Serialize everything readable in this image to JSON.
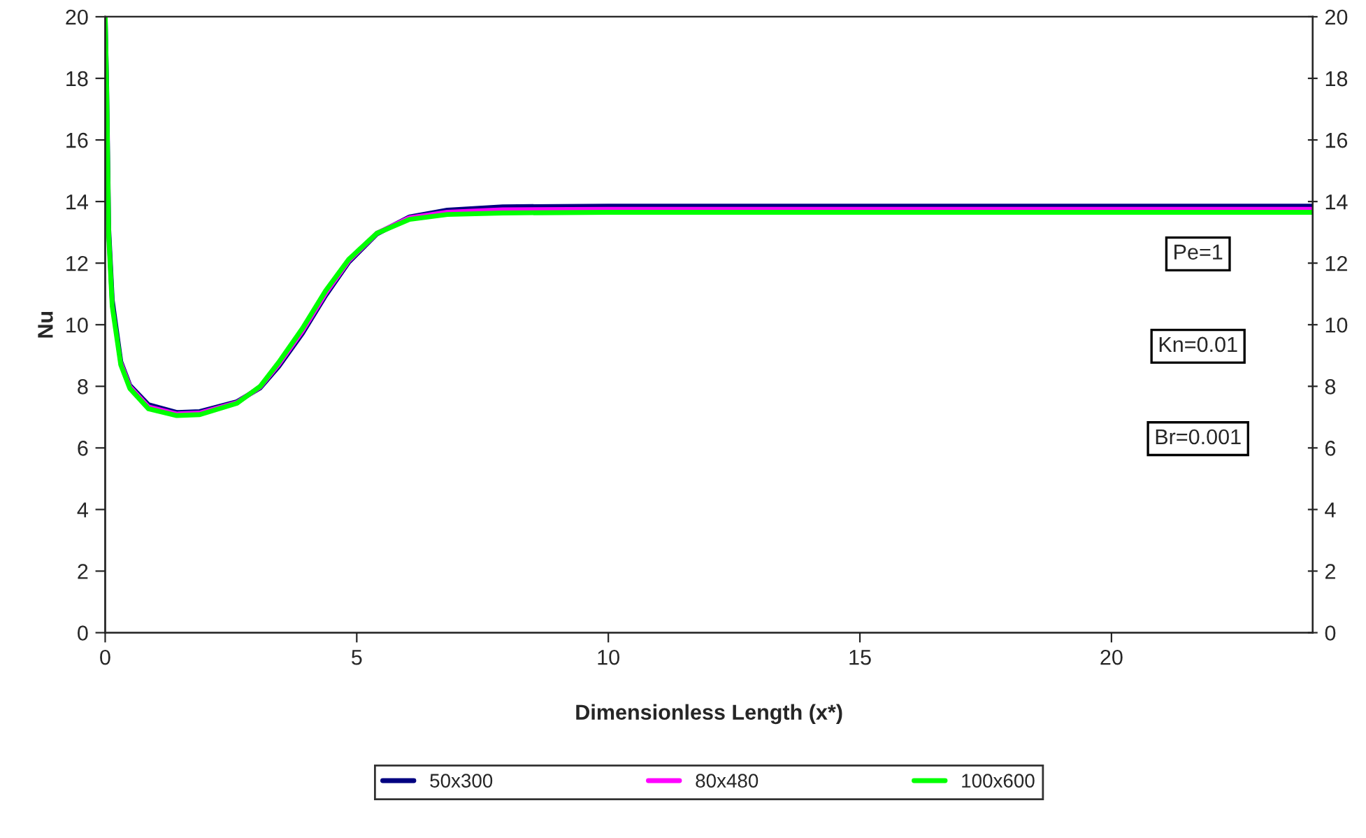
{
  "chart_data": {
    "type": "line",
    "xlabel": "Dimensionless Length (x*)",
    "ylabel": "Nu",
    "x": [
      0,
      0.03,
      0.07,
      0.14,
      0.31,
      0.49,
      0.86,
      1.42,
      1.88,
      2.62,
      3.08,
      3.45,
      3.92,
      4.38,
      4.84,
      5.4,
      6.05,
      6.8,
      7.9,
      10,
      15,
      20,
      24
    ],
    "series": [
      {
        "name": "50x300",
        "color": "#000080",
        "values": [
          20,
          17.7,
          13.1,
          10.8,
          8.8,
          8.03,
          7.4,
          7.15,
          7.18,
          7.5,
          7.95,
          8.65,
          9.72,
          10.95,
          12.03,
          12.95,
          13.5,
          13.72,
          13.83,
          13.85,
          13.85,
          13.85,
          13.85
        ]
      },
      {
        "name": "80x480",
        "color": "#ff00ff",
        "values": [
          null,
          null,
          null,
          null,
          8.75,
          7.98,
          7.33,
          7.1,
          7.13,
          7.47,
          7.98,
          8.72,
          9.8,
          11.02,
          12.08,
          12.97,
          13.47,
          13.65,
          13.73,
          13.75,
          13.75,
          13.75,
          13.75
        ]
      },
      {
        "name": "100x600",
        "color": "#00ff00",
        "values": [
          20,
          17.5,
          12.9,
          10.6,
          8.7,
          7.93,
          7.27,
          7.05,
          7.08,
          7.45,
          8.0,
          8.78,
          9.88,
          11.1,
          12.12,
          12.97,
          13.42,
          13.58,
          13.63,
          13.65,
          13.65,
          13.65,
          13.65
        ]
      }
    ],
    "xlim": [
      0,
      24
    ],
    "xticks": [
      0,
      5,
      10,
      15,
      20
    ],
    "ylim": [
      0,
      20
    ],
    "yticks": [
      0,
      2,
      4,
      6,
      8,
      10,
      12,
      14,
      16,
      18,
      20
    ],
    "y2lim": [
      0,
      20
    ],
    "y2ticks": [
      0,
      2,
      4,
      6,
      8,
      10,
      12,
      14,
      16,
      18,
      20
    ],
    "annotations": [
      "Pe=1",
      "Kn=0.01",
      "Br=0.001"
    ],
    "grid": false,
    "legend": "bottom",
    "marker": "none",
    "line_style": "solid"
  }
}
